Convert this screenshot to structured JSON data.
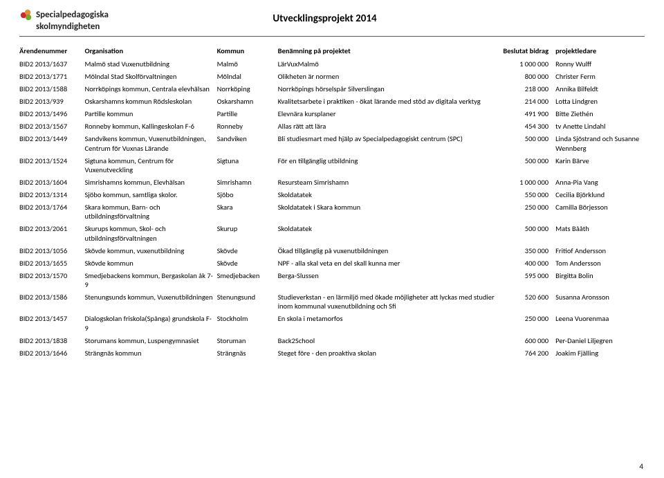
{
  "header": {
    "logo_line1": "Specialpedagogiska",
    "logo_line2": "skolmyndigheten",
    "title": "Utvecklingsprojekt 2014",
    "page_number": "4"
  },
  "table": {
    "columns": [
      "Ärendenummer",
      "Organisation",
      "Kommun",
      "Benämning på projektet",
      "Beslutat bidrag",
      "projektledare"
    ],
    "col_align": [
      "left",
      "left",
      "left",
      "left",
      "right",
      "left"
    ],
    "fontsize": 10.5,
    "header_fontweight": "bold",
    "rows": [
      [
        "BID2 2013/1637",
        "Malmö stad Vuxenutbildning",
        "Malmö",
        "LärVuxMalmö",
        "1 000 000",
        "Ronny Wulff"
      ],
      [
        "BID2 2013/1771",
        "Mölndal Stad Skolförvaltningen",
        "Mölndal",
        "Olikheten är normen",
        "800 000",
        "Christer Ferm"
      ],
      [
        "BID2 2013/1588",
        "Norrköpings kommun, Centrala elevhälsan",
        "Norrköping",
        "Norrköpings hörselspår Silverslingan",
        "218 000",
        "Annika Bilfeldt"
      ],
      [
        "BID2 2013/939",
        "Oskarshamns kommun Rödsleskolan",
        "Oskarshamn",
        "Kvalitetsarbete i praktiken - ökat lärande med stöd av digitala verktyg",
        "214 000",
        "Lotta Lindgren"
      ],
      [
        "BID2 2013/1496",
        "Partille kommun",
        "Partille",
        "Elevnära kursplaner",
        "491 900",
        "Bitte  Ziethén"
      ],
      [
        "BID2 2013/1567",
        "Ronneby kommun, Kallingeskolan F-6",
        "Ronneby",
        "Allas rätt att lära",
        "454 300",
        "tv Anette Lindahl"
      ],
      [
        "BID2 2013/1449",
        "Sandvikens kommun, Vuxenutbildningen, Centrum för Vuxnas Lärande",
        "Sandviken",
        "Bli studiesmart med hjälp av Specialpedagogiskt centrum (SPC)",
        "500 000",
        "Linda Sjöstrand och Susanne Wennberg"
      ],
      [
        "BID2 2013/1524",
        "Sigtuna kommun, Centrum för Vuxenutveckling",
        "Sigtuna",
        "För en tillgänglig utbildning",
        "500 000",
        "Karin Bärve"
      ],
      [
        "BID2 2013/1604",
        "Simrishamns kommun, Elevhälsan",
        "Simrishamn",
        "Resursteam Simrishamn",
        "1 000 000",
        "Anna-Pia Vang"
      ],
      [
        "BID2 2013/1314",
        "Sjöbo kommun, samtliga skolor.",
        "Sjöbo",
        "Skoldatatek",
        "550 000",
        "Cecilia Björklund"
      ],
      [
        "BID2 2013/1764",
        "Skara kommun, Barn- och utbildningsförvaltning",
        "Skara",
        "Skoldatatek i Skara kommun",
        "250 000",
        "Camilla Börjesson"
      ],
      [
        "BID2 2013/2061",
        "Skurups kommun, Skol- och utbildningsförvaltningen",
        "Skurup",
        "Skoldatatek",
        "500 000",
        "Mats Bååth"
      ],
      [
        "BID2 2013/1056",
        "Skövde kommun, vuxenutbildning",
        "Skövde",
        " Ökad tillgänglig på vuxenutbildningen",
        "350 000",
        "Fritiof Andersson"
      ],
      [
        "BID2 2013/1655",
        "Skövde kommun",
        "Skövde",
        "NPF - alla skal veta en del skall kunna mer",
        "400 000",
        "Tom Andersson"
      ],
      [
        "BID2 2013/1570",
        "Smedjebackens kommun, Bergaskolan åk 7-9",
        "Smedjebacken",
        "Berga-Slussen",
        "595 000",
        "Birgitta Bolin"
      ],
      [
        "BID2 2013/1586",
        "Stenungsunds kommun, Vuxenutbildningen",
        "Stenungsund",
        "Studieverkstan - en lärmiljö med ökade möjligheter att lyckas med studier inom kommunal vuxenutbildning och Sfi",
        "520 600",
        "Susanna Aronsson"
      ],
      [
        "BID2 2013/1457",
        "Dialogskolan friskola(Spånga) grundskola F-9",
        "Stockholm",
        "En skola i metamorfos",
        "250 000",
        "Leena Vuorenmaa"
      ],
      [
        "BID2 2013/1838",
        "Storumans kommun, Luspengymnasiet",
        "Storuman",
        "Back2School",
        "600 000",
        "Per-Daniel Liljegren"
      ],
      [
        "BID2 2013/1646",
        "Strängnäs kommun",
        "Strängnäs",
        "Steget före - den proaktiva skolan",
        "764 200",
        "Joakim Fjälling"
      ]
    ]
  },
  "colors": {
    "text": "#000000",
    "background": "#ffffff",
    "divider": "#555555",
    "logo_red": "#cc2a2a",
    "logo_orange": "#e08a2a",
    "logo_green": "#6aa22e"
  }
}
